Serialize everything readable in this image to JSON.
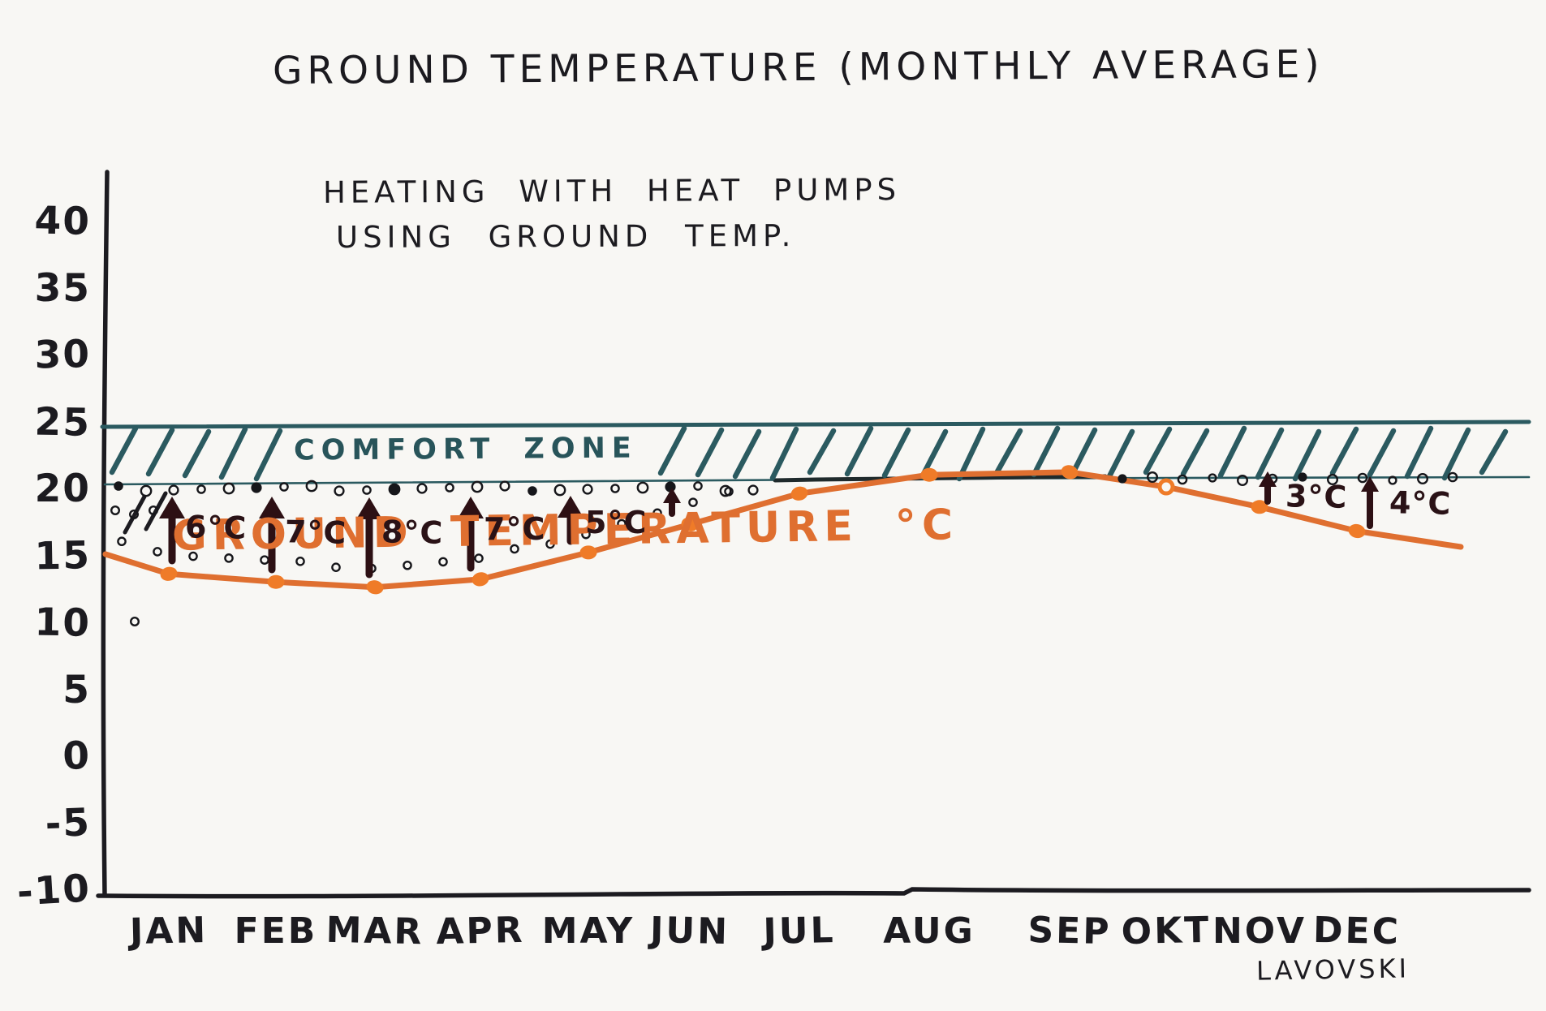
{
  "title": "GROUND TEMPERATURE (MONTHLY AVERAGE)",
  "subtitle_lines": [
    "HEATING WITH HEAT PUMPS",
    "USING GROUND TEMP."
  ],
  "comfort_zone_label": "COMFORT ZONE",
  "series_label": "GROUND TEMPERATURE °C",
  "signature": "LAVOVSKI",
  "colors": {
    "paper": "#f8f7f4",
    "ink": "#1c1b20",
    "teal": "#2b5a60",
    "orange": "#df6f30",
    "orange_dot": "#ef7b28",
    "arrow_dark": "#2d1014"
  },
  "chart_data": {
    "type": "line",
    "title": "GROUND TEMPERATURE (MONTHLY AVERAGE)",
    "categories": [
      "JAN",
      "FEB",
      "MAR",
      "APR",
      "MAY",
      "JUN",
      "JUL",
      "AUG",
      "SEP",
      "OKT",
      "NOV",
      "DEC"
    ],
    "series": [
      {
        "name": "GROUND TEMPERATURE °C",
        "values": [
          13.8,
          13.2,
          12.8,
          13.4,
          15.4,
          17.5,
          19.8,
          21.2,
          21.4,
          20.3,
          18.8,
          17.0
        ]
      }
    ],
    "xlabel": "",
    "ylabel": "°C",
    "ylim": [
      -10,
      40
    ],
    "y_ticks": [
      40,
      35,
      30,
      25,
      20,
      15,
      10,
      5,
      0,
      -5,
      -10
    ],
    "grid": false,
    "legend_position": "on-plot",
    "comfort_zone": {
      "label": "COMFORT ZONE",
      "from_c": 20.5,
      "to_c": 25
    },
    "heat_pump_lift_arrows": [
      {
        "month": "JAN",
        "label": "6°C"
      },
      {
        "month": "FEB",
        "label": "7°C"
      },
      {
        "month": "MAR",
        "label": "8°C"
      },
      {
        "month": "APR",
        "label": "7°C"
      },
      {
        "month": "MAY",
        "label": "5°C"
      },
      {
        "month": "JUN",
        "label": ""
      },
      {
        "month": "NOV",
        "label": "3°C"
      },
      {
        "month": "DEC",
        "label": "4°C"
      }
    ],
    "annotation": "HEATING WITH HEAT PUMPS USING GROUND TEMP.",
    "author": "LAVOVSKI"
  }
}
